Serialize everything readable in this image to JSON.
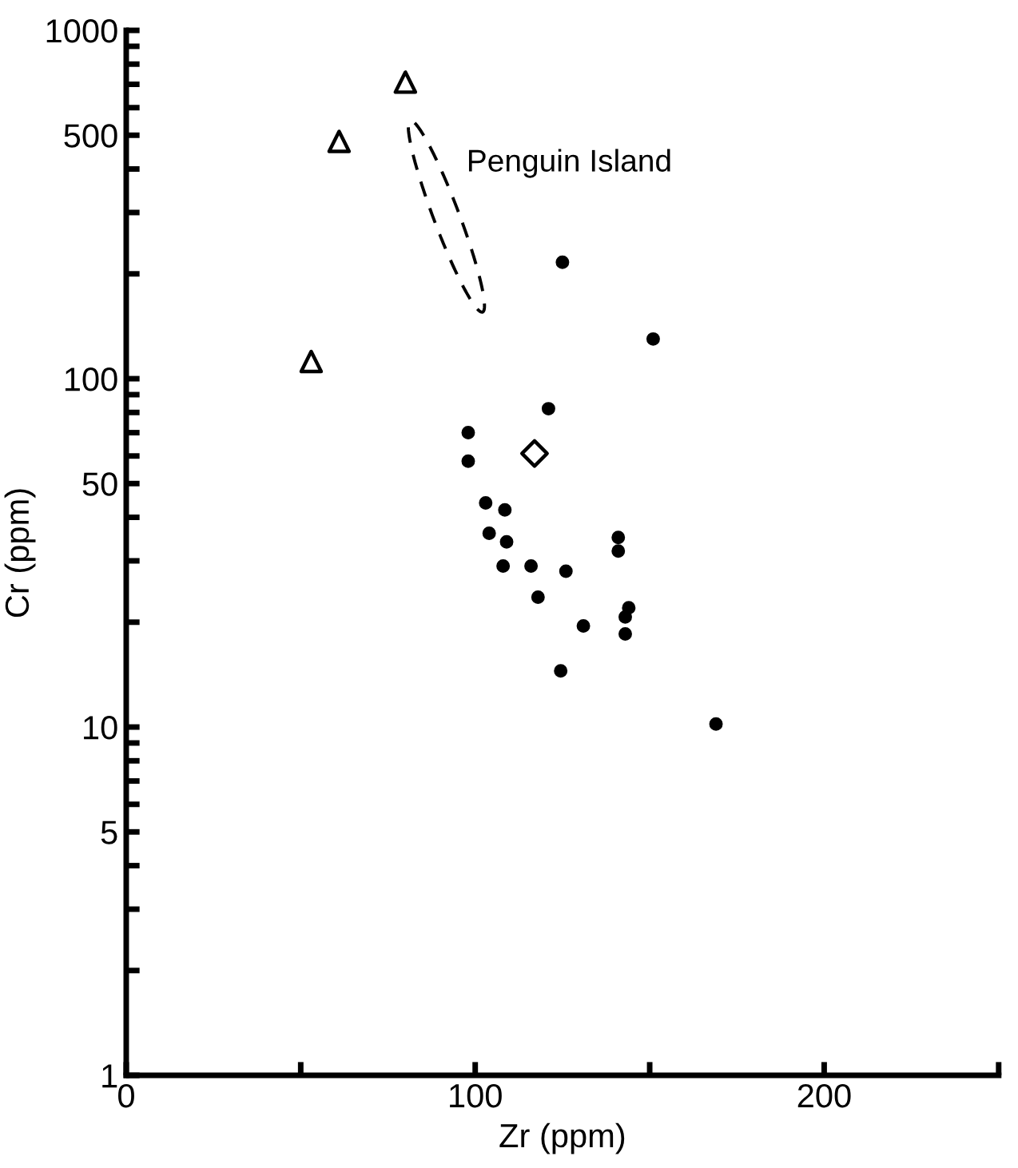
{
  "chart_data": {
    "type": "scatter",
    "xlabel": "Zr (ppm)",
    "ylabel": "Cr (ppm)",
    "log": "y",
    "grid": false,
    "legend": false,
    "xlim": [
      0,
      250
    ],
    "ylim": [
      1,
      1000
    ],
    "xticks": [
      0,
      {
        "value": 50,
        "label": null
      },
      100,
      {
        "value": 150,
        "label": null
      },
      200,
      {
        "value": 250,
        "label": null
      }
    ],
    "yticks": [
      1,
      {
        "value": 2,
        "label": null
      },
      {
        "value": 3,
        "label": null
      },
      {
        "value": 4,
        "label": null
      },
      5,
      {
        "value": 6,
        "label": null
      },
      {
        "value": 7,
        "label": null
      },
      {
        "value": 8,
        "label": null
      },
      {
        "value": 9,
        "label": null
      },
      10,
      {
        "value": 20,
        "label": null
      },
      {
        "value": 30,
        "label": null
      },
      {
        "value": 40,
        "label": null
      },
      50,
      {
        "value": 60,
        "label": null
      },
      {
        "value": 70,
        "label": null
      },
      {
        "value": 80,
        "label": null
      },
      {
        "value": 90,
        "label": null
      },
      100,
      {
        "value": 200,
        "label": null
      },
      {
        "value": 300,
        "label": null
      },
      {
        "value": 400,
        "label": null
      },
      500,
      {
        "value": 600,
        "label": null
      },
      {
        "value": 700,
        "label": null
      },
      {
        "value": 800,
        "label": null
      },
      {
        "value": 900,
        "label": null
      },
      1000
    ],
    "annotations": [
      "Penguin Island"
    ],
    "series": [
      {
        "color": "#000000",
        "marker": "triangle",
        "x": [
          80,
          61,
          53
        ],
        "values": [
          710,
          480,
          112
        ]
      },
      {
        "color": "#000000",
        "marker": "diamond",
        "x": [
          117
        ],
        "values": [
          61
        ]
      },
      {
        "color": "#000000",
        "marker": "circle",
        "x": [
          125,
          151,
          121,
          98,
          98,
          103,
          108.5,
          104,
          109,
          108,
          116,
          126,
          141,
          141,
          118,
          144,
          143,
          131,
          143,
          124.5,
          169
        ],
        "values": [
          216,
          130,
          82,
          70,
          58,
          44,
          42,
          36,
          34,
          29,
          29,
          28,
          35,
          32,
          23.6,
          22,
          20.7,
          19.5,
          18.5,
          14.5,
          10.2
        ]
      }
    ]
  }
}
